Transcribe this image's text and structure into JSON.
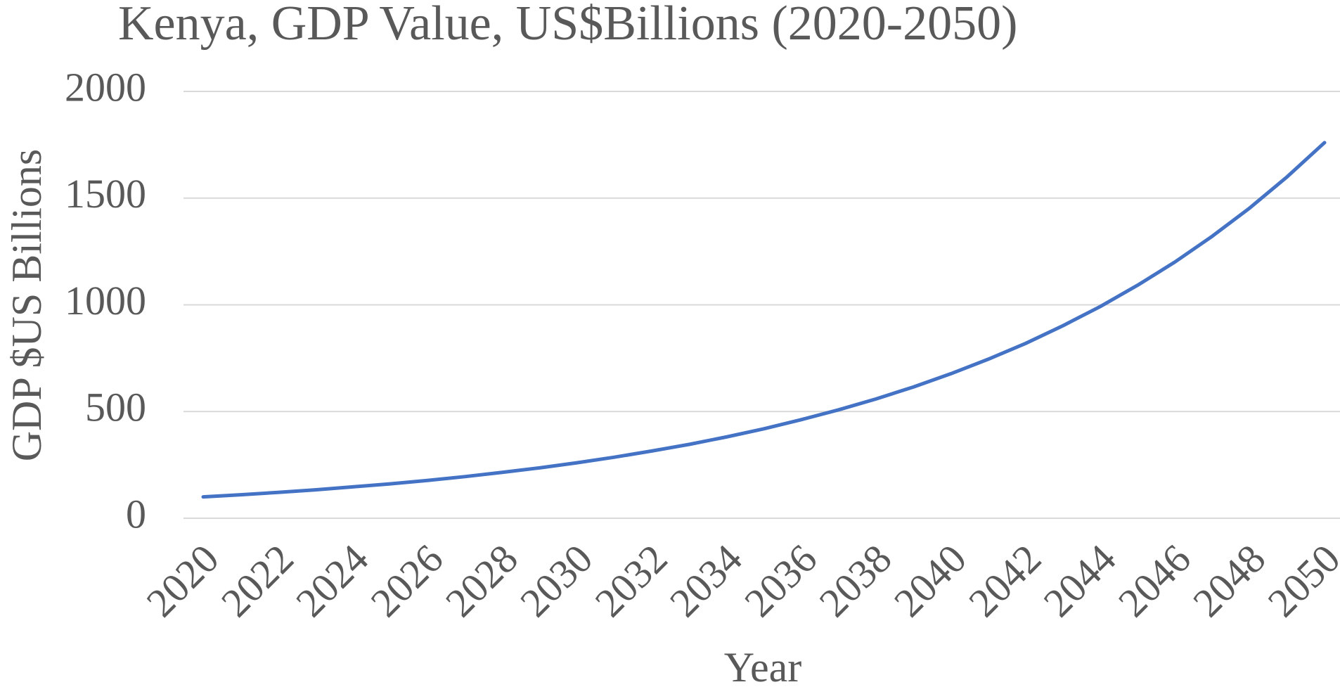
{
  "chart_data": {
    "type": "line",
    "title": "Kenya, GDP Value, US$Billions (2020-2050)",
    "x_label": "Year",
    "y_label": "GDP $US Billions",
    "x": [
      2020,
      2021,
      2022,
      2023,
      2024,
      2025,
      2026,
      2027,
      2028,
      2029,
      2030,
      2031,
      2032,
      2033,
      2034,
      2035,
      2036,
      2037,
      2038,
      2039,
      2040,
      2041,
      2042,
      2043,
      2044,
      2045,
      2046,
      2047,
      2048,
      2049,
      2050
    ],
    "series": [
      {
        "name": "GDP",
        "color": "#4472c4",
        "values": [
          100,
          110,
          121,
          133,
          147,
          161,
          177,
          195,
          215,
          236,
          260,
          286,
          315,
          346,
          381,
          419,
          462,
          508,
          559,
          615,
          677,
          745,
          819,
          902,
          992,
          1092,
          1201,
          1322,
          1454,
          1600,
          1760
        ]
      }
    ],
    "xlim": [
      2020,
      2050
    ],
    "xticks": [
      2020,
      2022,
      2024,
      2026,
      2028,
      2030,
      2032,
      2034,
      2036,
      2038,
      2040,
      2042,
      2044,
      2046,
      2048,
      2050
    ],
    "ylim": [
      0,
      2000
    ],
    "yticks": [
      0,
      500,
      1000,
      1500,
      2000
    ],
    "grid": true
  }
}
